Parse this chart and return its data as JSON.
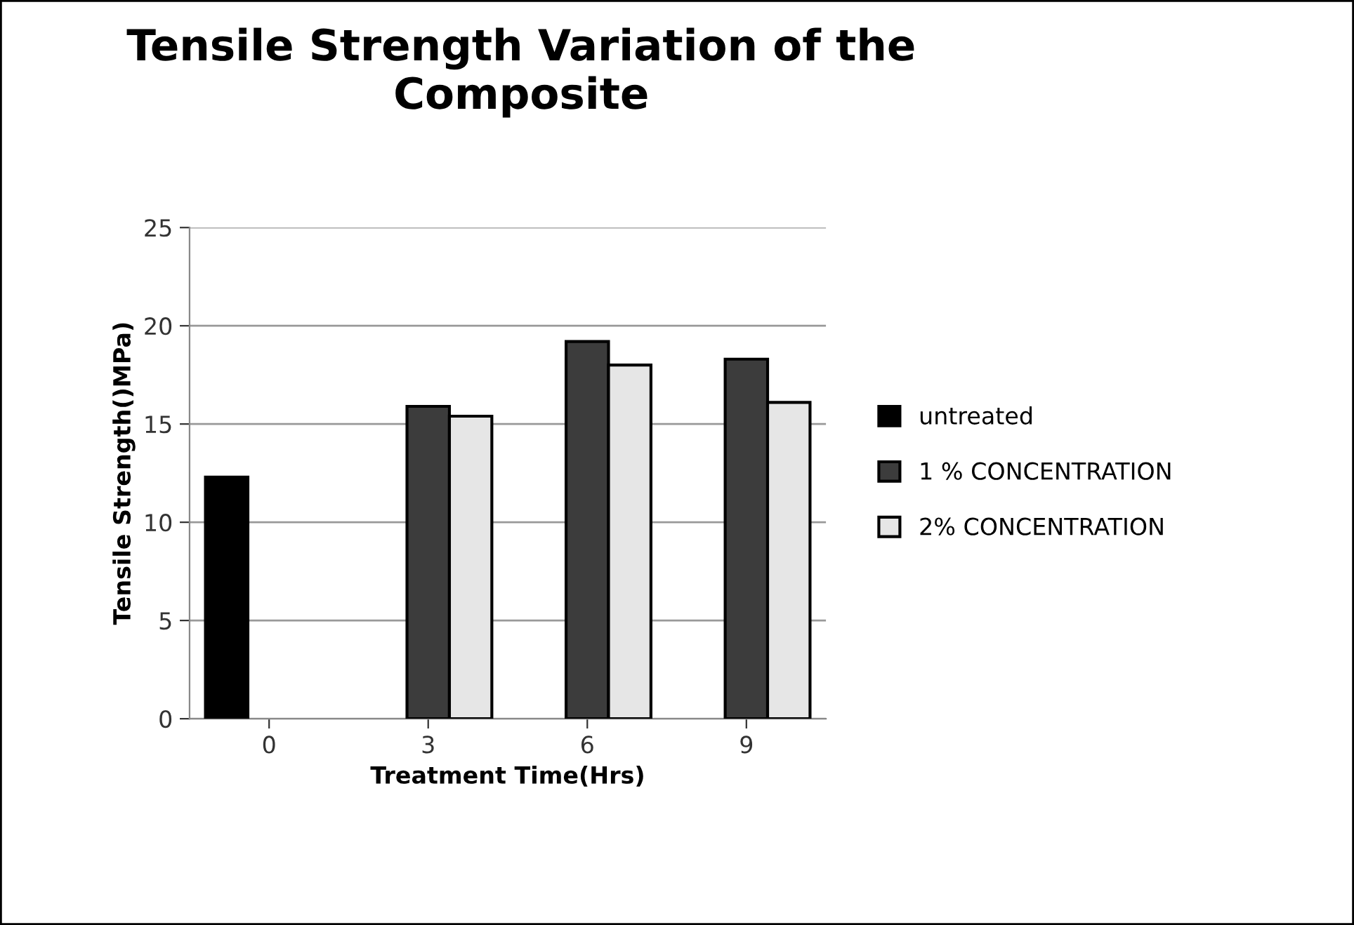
{
  "chart_data": {
    "type": "bar",
    "title": "Tensile Strength Variation of the\nComposite",
    "xlabel": "Treatment Time(Hrs)",
    "ylabel": "Tensile Strength()MPa)",
    "categories": [
      "0",
      "3",
      "6",
      "9"
    ],
    "series": [
      {
        "name": "untreated",
        "color": "#000000",
        "values": [
          12.3,
          null,
          null,
          null
        ]
      },
      {
        "name": "1 % CONCENTRATION",
        "color": "#3c3c3c",
        "values": [
          null,
          15.9,
          19.2,
          18.3
        ]
      },
      {
        "name": "2% CONCENTRATION",
        "color": "#e6e6e6",
        "values": [
          null,
          15.4,
          18.0,
          16.1
        ]
      }
    ],
    "ylim": [
      0,
      25
    ],
    "yticks": [
      0,
      5,
      10,
      15,
      20,
      25
    ],
    "grid": "y",
    "legend": "right"
  }
}
